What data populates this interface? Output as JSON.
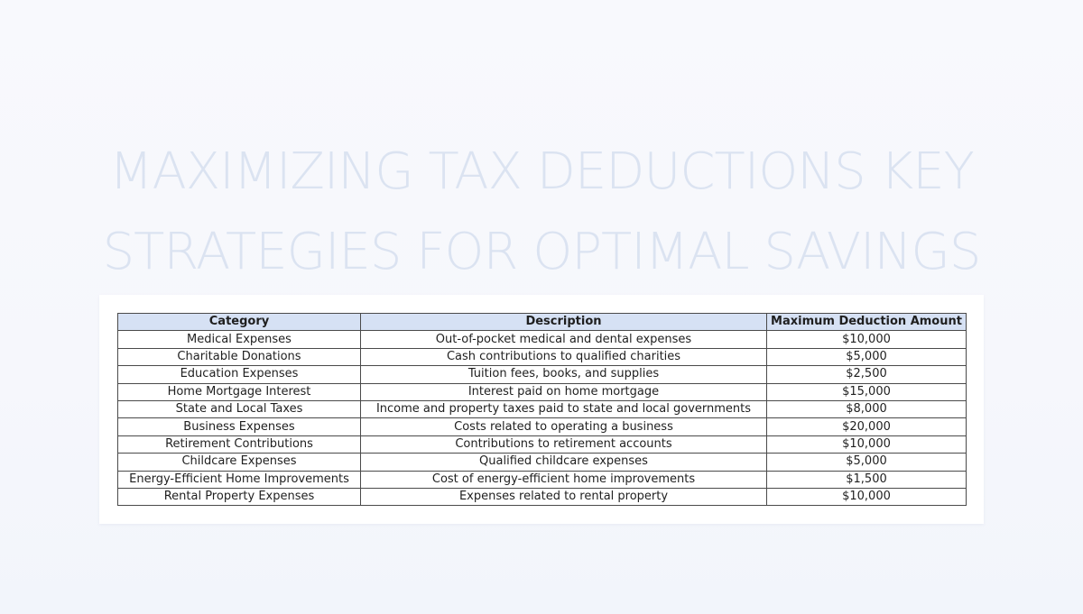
{
  "title": {
    "line1": "MAXIMIZING TAX DEDUCTIONS KEY",
    "line2": "STRATEGIES FOR OPTIMAL SAVINGS"
  },
  "table": {
    "headers": [
      "Category",
      "Description",
      "Maximum Deduction Amount"
    ],
    "rows": [
      [
        "Medical Expenses",
        "Out-of-pocket medical and dental expenses",
        "$10,000"
      ],
      [
        "Charitable Donations",
        "Cash contributions to qualified charities",
        "$5,000"
      ],
      [
        "Education Expenses",
        "Tuition fees, books, and supplies",
        "$2,500"
      ],
      [
        "Home Mortgage Interest",
        "Interest paid on home mortgage",
        "$15,000"
      ],
      [
        "State and Local Taxes",
        "Income and property taxes paid to state and local governments",
        "$8,000"
      ],
      [
        "Business Expenses",
        "Costs related to operating a business",
        "$20,000"
      ],
      [
        "Retirement Contributions",
        "Contributions to retirement accounts",
        "$10,000"
      ],
      [
        "Childcare Expenses",
        "Qualified childcare expenses",
        "$5,000"
      ],
      [
        "Energy-Efficient Home Improvements",
        "Cost of energy-efficient home improvements",
        "$1,500"
      ],
      [
        "Rental Property Expenses",
        "Expenses related to rental property",
        "$10,000"
      ]
    ]
  },
  "colors": {
    "title": "#dbe3f1",
    "header_fill": "#d6e1f4",
    "background": "#f5f7fc"
  }
}
